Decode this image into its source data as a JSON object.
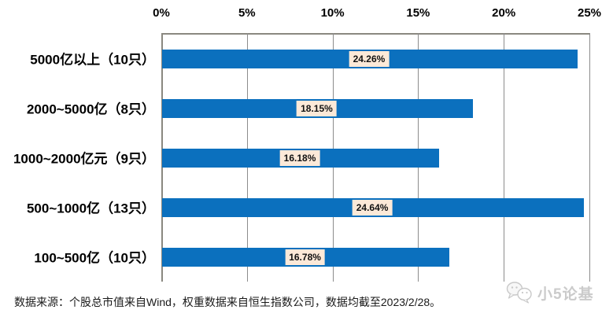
{
  "chart_data": {
    "type": "bar",
    "orientation": "horizontal",
    "title": "",
    "categories": [
      "5000亿以上（10只）",
      "2000~5000亿（8只）",
      "1000~2000亿元（9只）",
      "500~1000亿（13只）",
      "100~500亿（10只）"
    ],
    "values": [
      24.26,
      18.15,
      16.18,
      24.64,
      16.78
    ],
    "value_labels": [
      "24.26%",
      "18.15%",
      "16.18%",
      "24.64%",
      "16.78%"
    ],
    "x_axis": {
      "position": "top",
      "min": 0,
      "max": 25,
      "ticks": [
        "0%",
        "5%",
        "10%",
        "15%",
        "20%",
        "25%"
      ]
    },
    "grid": "vertical-on",
    "legend": "none",
    "bar_color": "#0b70be",
    "value_label_bg": "#fce9d8",
    "gridline_color": "#8c8c8c"
  },
  "footer": {
    "source_note": "数据来源：个股总市值来自Wind，权重数据来自恒生指数公司，数据均截至2023/2/28。"
  },
  "watermark": {
    "icon": "wechat-chat-bubbles-icon",
    "text": "小5论基"
  }
}
